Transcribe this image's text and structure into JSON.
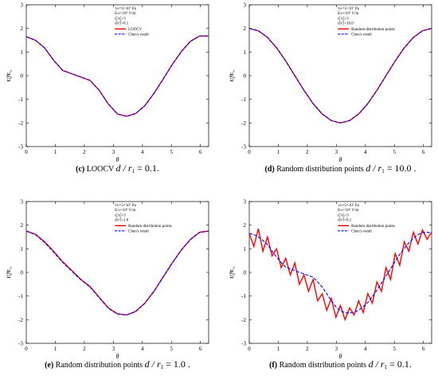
{
  "chart_data": [
    {
      "type": "line",
      "id": "c",
      "caption": {
        "letter": "(c)",
        "text": "LOOCV",
        "math": "d / r",
        "sub": "1",
        "value": "= 0.1."
      },
      "xlabel": "θ",
      "ylabel": {
        "main": "E",
        "sup": "(0)",
        "sub": "θ",
        "tail": "/E",
        "tailsub": "∞"
      },
      "xlim": [
        0,
        6.2832
      ],
      "ylim": [
        -3,
        3
      ],
      "xticks": [
        "0",
        "1",
        "2",
        "3",
        "4",
        "5",
        "6"
      ],
      "yticks": [
        "-3",
        "-2",
        "-1",
        "0",
        "1",
        "2",
        "3"
      ],
      "annotations": [
        "τ∞=5×10⁷ Pa",
        "E∞=10⁵ V/m",
        "ε_1^r/ε_2^r=3",
        "d/r1=0.1"
      ],
      "legend": [
        "LOOCV",
        "Chen's result"
      ],
      "x": [
        0,
        0.314,
        0.628,
        0.942,
        1.257,
        1.571,
        1.885,
        2.199,
        2.513,
        2.827,
        3.142,
        3.456,
        3.77,
        4.084,
        4.398,
        4.712,
        5.027,
        5.341,
        5.655,
        5.969,
        6.283
      ],
      "series": [
        {
          "name": "LOOCV",
          "color": "#ff0000",
          "style": "solid",
          "values": [
            1.65,
            1.5,
            1.18,
            0.65,
            0.22,
            0.08,
            -0.06,
            -0.2,
            -0.62,
            -1.2,
            -1.62,
            -1.72,
            -1.6,
            -1.27,
            -0.75,
            -0.15,
            0.47,
            1.02,
            1.45,
            1.68,
            1.68
          ]
        },
        {
          "name": "Chen's result",
          "color": "#0000ff",
          "style": "dashed",
          "values": [
            1.65,
            1.5,
            1.18,
            0.65,
            0.22,
            0.08,
            -0.06,
            -0.2,
            -0.62,
            -1.2,
            -1.62,
            -1.72,
            -1.6,
            -1.27,
            -0.75,
            -0.15,
            0.47,
            1.02,
            1.45,
            1.68,
            1.68
          ]
        }
      ]
    },
    {
      "type": "line",
      "id": "d",
      "caption": {
        "letter": "(d)",
        "text": "Random distribution points",
        "math": "d / r",
        "sub": "1",
        "value": "= 10.0 ."
      },
      "xlabel": "θ",
      "ylabel": {
        "main": "E",
        "sup": "(0)",
        "sub": "θ",
        "tail": "/E",
        "tailsub": "∞"
      },
      "xlim": [
        0,
        6.2832
      ],
      "ylim": [
        -3,
        3
      ],
      "xticks": [
        "0",
        "1",
        "2",
        "3",
        "4",
        "5",
        "6"
      ],
      "yticks": [
        "-3",
        "-2",
        "-1",
        "0",
        "1",
        "2",
        "3"
      ],
      "annotations": [
        "τ∞=5×10⁷ Pa",
        "E∞=10⁵ V/m",
        "ε_1^r/ε_2^r=3",
        "d/r1=10.0"
      ],
      "legend": [
        "Random distribution points",
        "Chen's result"
      ],
      "x": [
        0,
        0.314,
        0.628,
        0.942,
        1.257,
        1.571,
        1.885,
        2.199,
        2.513,
        2.827,
        3.142,
        3.456,
        3.77,
        4.084,
        4.398,
        4.712,
        5.027,
        5.341,
        5.655,
        5.969,
        6.283
      ],
      "series": [
        {
          "name": "Random distribution points",
          "color": "#ff0000",
          "style": "solid",
          "values": [
            2.0,
            1.9,
            1.62,
            1.18,
            0.62,
            0.0,
            -0.62,
            -1.18,
            -1.62,
            -1.9,
            -2.0,
            -1.9,
            -1.62,
            -1.18,
            -0.62,
            0.0,
            0.62,
            1.18,
            1.62,
            1.9,
            2.0
          ]
        },
        {
          "name": "Chen's result",
          "color": "#0000ff",
          "style": "dashed",
          "values": [
            2.0,
            1.9,
            1.62,
            1.18,
            0.62,
            0.0,
            -0.62,
            -1.18,
            -1.62,
            -1.9,
            -2.0,
            -1.9,
            -1.62,
            -1.18,
            -0.62,
            0.0,
            0.62,
            1.18,
            1.62,
            1.9,
            2.0
          ]
        }
      ]
    },
    {
      "type": "line",
      "id": "e",
      "caption": {
        "letter": "(e)",
        "text": "Random distribution points",
        "math": "d / r",
        "sub": "1",
        "value": "= 1.0 ."
      },
      "xlabel": "θ",
      "ylabel": {
        "main": "E",
        "sup": "(0)",
        "sub": "θ",
        "tail": "/E",
        "tailsub": "∞"
      },
      "xlim": [
        0,
        6.2832
      ],
      "ylim": [
        -3,
        3
      ],
      "xticks": [
        "0",
        "1",
        "2",
        "3",
        "4",
        "5",
        "6"
      ],
      "yticks": [
        "-3",
        "-2",
        "-1",
        "0",
        "1",
        "2",
        "3"
      ],
      "annotations": [
        "τ∞=5×10⁷ Pa",
        "E∞=10⁵ V/m",
        "ε_1^r/ε_2^r=3",
        "d/r1=1.0"
      ],
      "legend": [
        "Random distribution points",
        "Chen's result"
      ],
      "x": [
        0,
        0.314,
        0.628,
        0.942,
        1.257,
        1.571,
        1.885,
        2.199,
        2.513,
        2.827,
        3.142,
        3.456,
        3.77,
        4.084,
        4.398,
        4.712,
        5.027,
        5.341,
        5.655,
        5.969,
        6.283
      ],
      "series": [
        {
          "name": "Random distribution points",
          "color": "#ff0000",
          "style": "solid",
          "values": [
            1.75,
            1.62,
            1.3,
            0.9,
            0.45,
            0.08,
            -0.3,
            -0.6,
            -1.05,
            -1.5,
            -1.75,
            -1.8,
            -1.65,
            -1.3,
            -0.8,
            -0.2,
            0.4,
            0.95,
            1.4,
            1.7,
            1.75
          ]
        },
        {
          "name": "Chen's result",
          "color": "#0000ff",
          "style": "dashed",
          "values": [
            1.75,
            1.6,
            1.27,
            0.86,
            0.42,
            0.05,
            -0.32,
            -0.62,
            -1.07,
            -1.52,
            -1.76,
            -1.8,
            -1.66,
            -1.31,
            -0.81,
            -0.21,
            0.39,
            0.94,
            1.39,
            1.69,
            1.75
          ]
        }
      ]
    },
    {
      "type": "line",
      "id": "f",
      "caption": {
        "letter": "(f)",
        "text": "Random distribution points",
        "math": "d / r",
        "sub": "1",
        "value": "= 0.1."
      },
      "xlabel": "θ",
      "ylabel": {
        "main": "E",
        "sup": "(0)",
        "sub": "θ",
        "tail": "/E",
        "tailsub": "∞"
      },
      "xlim": [
        0,
        6.2832
      ],
      "ylim": [
        -3,
        3
      ],
      "xticks": [
        "0",
        "1",
        "2",
        "3",
        "4",
        "5",
        "6"
      ],
      "yticks": [
        "-3",
        "-2",
        "-1",
        "0",
        "1",
        "2",
        "3"
      ],
      "annotations": [
        "τ∞=5×10⁷ Pa",
        "E∞=10⁵ V/m",
        "ε_1^r/ε_2^r=3",
        "d/r1=0.1"
      ],
      "legend": [
        "Random distribution points",
        "Chen's result"
      ],
      "x": [
        0,
        0.157,
        0.314,
        0.471,
        0.628,
        0.785,
        0.942,
        1.1,
        1.257,
        1.414,
        1.571,
        1.728,
        1.885,
        2.042,
        2.199,
        2.356,
        2.513,
        2.67,
        2.827,
        2.985,
        3.142,
        3.299,
        3.456,
        3.613,
        3.77,
        3.927,
        4.084,
        4.241,
        4.398,
        4.555,
        4.712,
        4.869,
        5.027,
        5.184,
        5.341,
        5.498,
        5.655,
        5.812,
        5.969,
        6.126,
        6.283
      ],
      "series": [
        {
          "name": "Random distribution points",
          "color": "#ff0000",
          "style": "solid",
          "values": [
            1.65,
            1.1,
            1.85,
            0.9,
            1.5,
            0.7,
            1.0,
            0.2,
            0.6,
            -0.1,
            0.4,
            -0.5,
            -0.1,
            -0.8,
            -0.3,
            -1.2,
            -0.9,
            -1.6,
            -1.1,
            -1.9,
            -1.4,
            -2.0,
            -1.5,
            -1.8,
            -1.2,
            -1.7,
            -0.9,
            -1.3,
            -0.4,
            -0.8,
            0.2,
            -0.3,
            0.8,
            0.3,
            1.3,
            0.9,
            1.7,
            1.2,
            1.8,
            1.4,
            1.7
          ]
        },
        {
          "name": "Chen's result",
          "color": "#0000ff",
          "style": "dashed",
          "values": [
            1.65,
            1.6,
            1.5,
            1.35,
            1.18,
            0.9,
            0.65,
            0.42,
            0.22,
            0.15,
            0.08,
            0.0,
            -0.06,
            -0.13,
            -0.2,
            -0.4,
            -0.62,
            -0.9,
            -1.2,
            -1.45,
            -1.62,
            -1.7,
            -1.72,
            -1.68,
            -1.6,
            -1.45,
            -1.27,
            -1.03,
            -0.75,
            -0.45,
            -0.15,
            0.16,
            0.47,
            0.76,
            1.02,
            1.25,
            1.45,
            1.6,
            1.68,
            1.7,
            1.68
          ]
        }
      ]
    }
  ]
}
